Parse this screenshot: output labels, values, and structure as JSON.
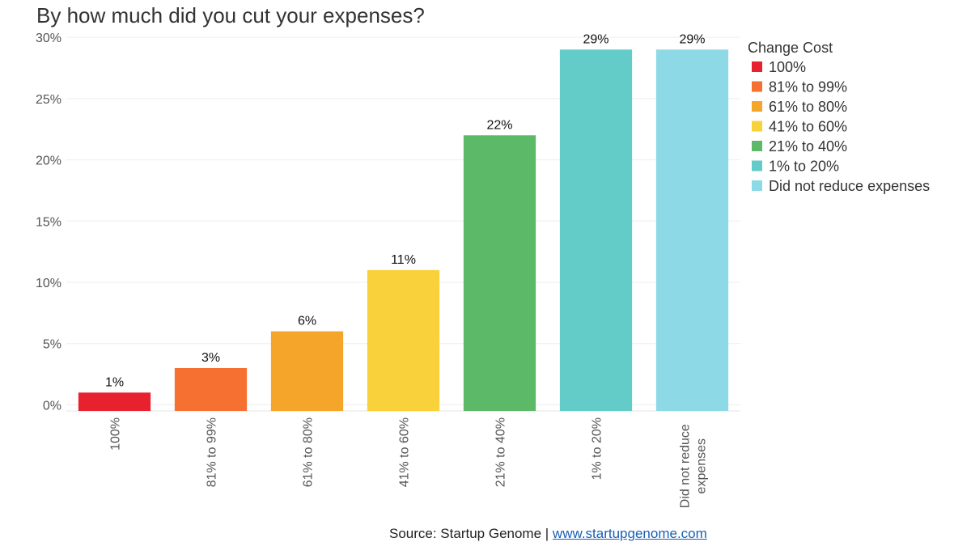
{
  "chart_data": {
    "type": "bar",
    "title": "By how much did you cut your expenses?",
    "xlabel": "",
    "ylabel": "",
    "categories": [
      "100%",
      "81% to 99%",
      "61% to 80%",
      "41% to 60%",
      "21% to 40%",
      "1% to 20%",
      "Did not reduce expenses"
    ],
    "values": [
      1,
      3,
      6,
      11,
      22,
      29,
      29
    ],
    "value_labels": [
      "1%",
      "3%",
      "6%",
      "11%",
      "22%",
      "29%",
      "29%"
    ],
    "colors": [
      "#e8212e",
      "#f57031",
      "#f5a52a",
      "#f9d13a",
      "#5cb967",
      "#63cbc8",
      "#8ed9e6"
    ],
    "ylim": [
      -0.5,
      31
    ],
    "yticks": [
      0,
      5,
      10,
      15,
      20,
      25,
      30
    ],
    "ytick_labels": [
      "0%",
      "5%",
      "10%",
      "15%",
      "20%",
      "25%",
      "30%"
    ],
    "grid": true,
    "legend": {
      "title": "Change Cost",
      "placement": "right",
      "entries": [
        "100%",
        "81% to 99%",
        "61% to 80%",
        "41% to 60%",
        "21% to 40%",
        "1% to 20%",
        "Did not reduce expenses"
      ]
    }
  },
  "source": {
    "prefix": "Source: Startup Genome | ",
    "link_text": "www.startupgenome.com"
  }
}
